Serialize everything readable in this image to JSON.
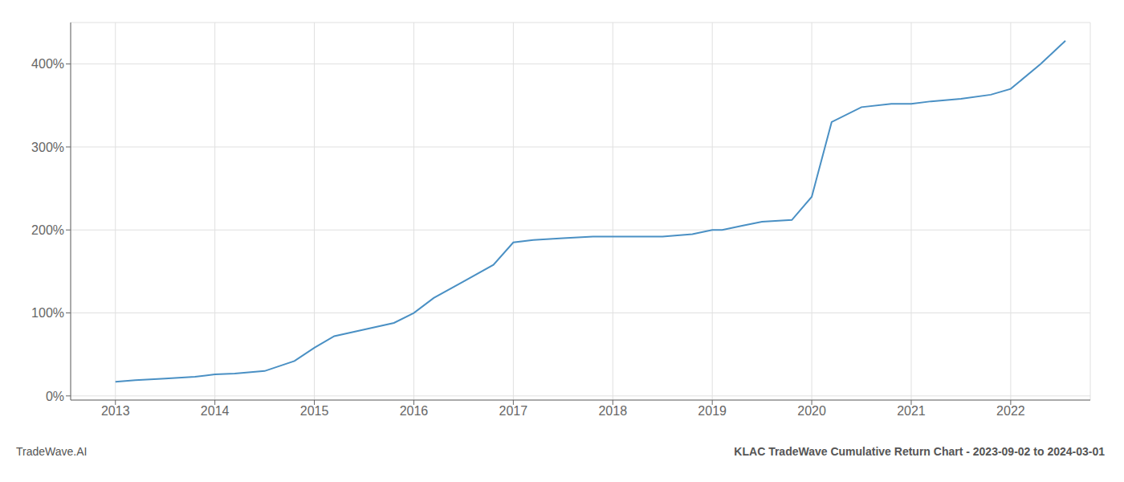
{
  "chart_data": {
    "type": "line",
    "title": "KLAC TradeWave Cumulative Return Chart - 2023-09-02 to 2024-03-01",
    "annotations": [
      "TradeWave.AI"
    ],
    "x": [
      2013.0,
      2013.2,
      2013.5,
      2013.8,
      2014.0,
      2014.2,
      2014.5,
      2014.8,
      2015.0,
      2015.2,
      2015.5,
      2015.8,
      2016.0,
      2016.2,
      2016.5,
      2016.8,
      2017.0,
      2017.2,
      2017.5,
      2017.8,
      2018.0,
      2018.2,
      2018.5,
      2018.8,
      2019.0,
      2019.1,
      2019.3,
      2019.5,
      2019.8,
      2020.0,
      2020.2,
      2020.5,
      2020.8,
      2021.0,
      2021.2,
      2021.5,
      2021.8,
      2022.0,
      2022.3,
      2022.55
    ],
    "values": [
      17,
      19,
      21,
      23,
      26,
      27,
      30,
      42,
      58,
      72,
      80,
      88,
      100,
      118,
      138,
      158,
      185,
      188,
      190,
      192,
      192,
      192,
      192,
      195,
      200,
      200,
      205,
      210,
      212,
      240,
      330,
      348,
      352,
      352,
      355,
      358,
      363,
      370,
      400,
      428
    ],
    "color": "#4a90c4",
    "xlim": [
      2012.55,
      2022.8
    ],
    "xticks": [
      2013,
      2014,
      2015,
      2016,
      2017,
      2018,
      2019,
      2020,
      2021,
      2022
    ],
    "ylim": [
      -5,
      450
    ],
    "yticks": [
      {
        "value": 0,
        "label": "0%"
      },
      {
        "value": 100,
        "label": "100%"
      },
      {
        "value": 200,
        "label": "200%"
      },
      {
        "value": 300,
        "label": "300%"
      },
      {
        "value": 400,
        "label": "400%"
      }
    ],
    "grid": true
  }
}
